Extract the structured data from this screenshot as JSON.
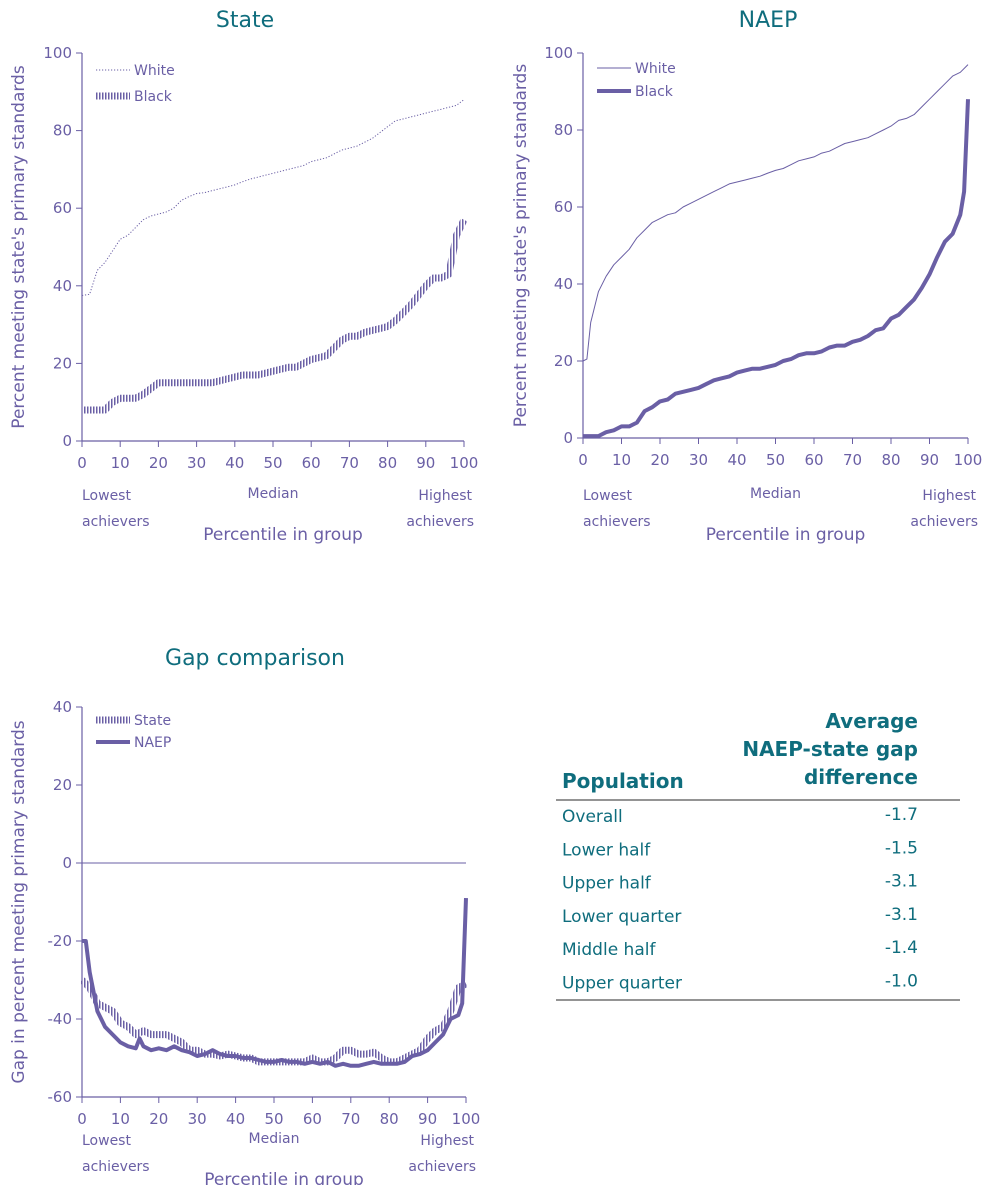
{
  "colors": {
    "accent": "#0f6d7d",
    "series": "#6a5fa5",
    "axis": "#6a5fa5"
  },
  "annotations": {
    "low": [
      "Lowest",
      "achievers"
    ],
    "mid": "Median",
    "high": [
      "Highest",
      "achievers"
    ]
  },
  "chart_data": [
    {
      "type": "line",
      "title": "State",
      "xlabel": "Percentile in group",
      "ylabel": "Percent meeting state's primary standards",
      "xlim": [
        0,
        100
      ],
      "ylim": [
        0,
        100
      ],
      "xticks": [
        0,
        10,
        20,
        30,
        40,
        50,
        60,
        70,
        80,
        90,
        100
      ],
      "yticks": [
        0,
        20,
        40,
        60,
        80,
        100
      ],
      "legend_position": "top-left",
      "series": [
        {
          "name": "White",
          "style": "dotted",
          "x": [
            0,
            2,
            4,
            6,
            8,
            10,
            12,
            14,
            16,
            18,
            20,
            22,
            24,
            26,
            28,
            30,
            32,
            34,
            36,
            38,
            40,
            42,
            44,
            46,
            48,
            50,
            52,
            54,
            56,
            58,
            60,
            62,
            64,
            66,
            68,
            70,
            72,
            74,
            76,
            78,
            80,
            82,
            84,
            86,
            88,
            90,
            92,
            94,
            96,
            98,
            100
          ],
          "y": [
            37.5,
            37.8,
            44,
            46,
            49,
            52,
            53,
            55,
            57,
            58,
            58.5,
            59,
            60,
            62,
            63,
            63.8,
            64,
            64.5,
            65,
            65.5,
            66,
            66.8,
            67.5,
            68,
            68.5,
            69,
            69.5,
            70,
            70.5,
            71,
            72,
            72.5,
            73,
            74,
            75,
            75.5,
            76,
            77,
            78,
            79.5,
            81,
            82.5,
            83,
            83.5,
            84,
            84.5,
            85,
            85.5,
            86,
            86.5,
            88
          ]
        },
        {
          "name": "Black",
          "style": "hatched",
          "x": [
            0,
            2,
            4,
            6,
            8,
            10,
            12,
            14,
            16,
            18,
            20,
            22,
            24,
            26,
            28,
            30,
            32,
            34,
            36,
            38,
            40,
            42,
            44,
            46,
            48,
            50,
            52,
            54,
            56,
            58,
            60,
            62,
            64,
            66,
            68,
            70,
            72,
            74,
            76,
            78,
            80,
            82,
            84,
            86,
            88,
            90,
            92,
            94,
            96,
            98,
            100
          ],
          "y": [
            8,
            8,
            8,
            8,
            10,
            11,
            11,
            11,
            12,
            13.5,
            15,
            15,
            15,
            15,
            15,
            15,
            15,
            15,
            15.5,
            16,
            16.5,
            17,
            17,
            17,
            17.5,
            18,
            18.5,
            19,
            19,
            20,
            21,
            21.5,
            22,
            24,
            26,
            27,
            27,
            28,
            28.5,
            29,
            29.5,
            31,
            33,
            35,
            37.5,
            40,
            42,
            42,
            43,
            53,
            57
          ]
        }
      ]
    },
    {
      "type": "line",
      "title": "NAEP",
      "xlabel": "Percentile in group",
      "ylabel": "Percent meeting state's primary standards",
      "xlim": [
        0,
        100
      ],
      "ylim": [
        0,
        100
      ],
      "xticks": [
        0,
        10,
        20,
        30,
        40,
        50,
        60,
        70,
        80,
        90,
        100
      ],
      "yticks": [
        0,
        20,
        40,
        60,
        80,
        100
      ],
      "legend_position": "top-left",
      "series": [
        {
          "name": "White",
          "style": "thin",
          "x": [
            0,
            1,
            2,
            4,
            6,
            8,
            10,
            12,
            14,
            16,
            18,
            20,
            22,
            24,
            26,
            28,
            30,
            32,
            34,
            36,
            38,
            40,
            42,
            44,
            46,
            48,
            50,
            52,
            54,
            56,
            58,
            60,
            62,
            64,
            66,
            68,
            70,
            72,
            74,
            76,
            78,
            80,
            82,
            84,
            86,
            88,
            90,
            92,
            94,
            96,
            98,
            100
          ],
          "y": [
            20,
            20.5,
            30,
            38,
            42,
            45,
            47,
            49,
            52,
            54,
            56,
            57,
            58,
            58.5,
            60,
            61,
            62,
            63,
            64,
            65,
            66,
            66.5,
            67,
            67.5,
            68,
            68.8,
            69.5,
            70,
            71,
            72,
            72.5,
            73,
            74,
            74.5,
            75.5,
            76.5,
            77,
            77.5,
            78,
            79,
            80,
            81,
            82.5,
            83,
            84,
            86,
            88,
            90,
            92,
            94,
            95,
            97
          ]
        },
        {
          "name": "Black",
          "style": "thick",
          "x": [
            0,
            2,
            4,
            6,
            8,
            10,
            12,
            14,
            16,
            18,
            20,
            22,
            24,
            26,
            28,
            30,
            32,
            34,
            36,
            38,
            40,
            42,
            44,
            46,
            48,
            50,
            52,
            54,
            56,
            58,
            60,
            62,
            64,
            66,
            68,
            70,
            72,
            74,
            76,
            78,
            80,
            82,
            84,
            86,
            88,
            90,
            92,
            94,
            96,
            98,
            99,
            100
          ],
          "y": [
            0.5,
            0.5,
            0.5,
            1.5,
            2,
            3,
            3,
            4,
            7,
            8,
            9.5,
            10,
            11.5,
            12,
            12.5,
            13,
            14,
            15,
            15.5,
            16,
            17,
            17.5,
            18,
            18,
            18.5,
            19,
            20,
            20.5,
            21.5,
            22,
            22,
            22.5,
            23.5,
            24,
            24,
            25,
            25.5,
            26.5,
            28,
            28.5,
            31,
            32,
            34,
            36,
            39,
            42.5,
            47,
            51,
            53,
            58,
            64,
            88
          ]
        }
      ]
    },
    {
      "type": "line",
      "title": "Gap comparison",
      "xlabel": "Percentile in group",
      "ylabel": "Gap in percent meeting primary standards",
      "xlim": [
        0,
        100
      ],
      "ylim": [
        -60,
        40
      ],
      "xticks": [
        0,
        10,
        20,
        30,
        40,
        50,
        60,
        70,
        80,
        90,
        100
      ],
      "yticks": [
        -60,
        -40,
        -20,
        0,
        20,
        40
      ],
      "legend_position": "top-left",
      "series": [
        {
          "name": "State",
          "style": "hatched",
          "x": [
            0,
            2,
            4,
            6,
            8,
            10,
            12,
            14,
            16,
            18,
            20,
            22,
            24,
            26,
            28,
            30,
            32,
            34,
            36,
            38,
            40,
            42,
            44,
            46,
            48,
            50,
            52,
            54,
            56,
            58,
            60,
            62,
            64,
            66,
            68,
            70,
            72,
            74,
            76,
            78,
            80,
            82,
            84,
            86,
            88,
            90,
            92,
            94,
            96,
            98,
            100
          ],
          "y": [
            -30,
            -32,
            -36,
            -37,
            -38,
            -41,
            -42,
            -44,
            -43,
            -44,
            -44,
            -44,
            -45,
            -46,
            -48,
            -48,
            -49,
            -49,
            -49.5,
            -49,
            -49.5,
            -50,
            -50,
            -51,
            -51,
            -51,
            -51,
            -51,
            -51,
            -51,
            -50,
            -51,
            -51,
            -50,
            -48,
            -48,
            -49,
            -49,
            -48.5,
            -50,
            -51,
            -51,
            -50,
            -49,
            -48,
            -45,
            -43,
            -42,
            -38,
            -32,
            -31
          ]
        },
        {
          "name": "NAEP",
          "style": "thick",
          "x": [
            0,
            1,
            2,
            4,
            6,
            8,
            10,
            12,
            14,
            15,
            16,
            18,
            20,
            22,
            24,
            26,
            28,
            30,
            32,
            34,
            36,
            38,
            40,
            42,
            44,
            46,
            48,
            50,
            52,
            54,
            56,
            58,
            60,
            62,
            64,
            66,
            68,
            70,
            72,
            74,
            76,
            78,
            80,
            82,
            84,
            86,
            88,
            90,
            92,
            94,
            96,
            98,
            99,
            100
          ],
          "y": [
            -20,
            -20,
            -28,
            -38,
            -42,
            -44,
            -46,
            -47,
            -47.5,
            -45,
            -47,
            -48,
            -47.5,
            -48,
            -47,
            -48,
            -48.5,
            -49.5,
            -49,
            -48,
            -49,
            -49.5,
            -49.5,
            -50,
            -50,
            -50.5,
            -51,
            -51,
            -50.5,
            -51,
            -51,
            -51.5,
            -51,
            -51.5,
            -51,
            -52,
            -51.5,
            -52,
            -52,
            -51.5,
            -51,
            -51.5,
            -51.5,
            -51.5,
            -51,
            -49.5,
            -49,
            -48,
            -46,
            -44,
            -40,
            -39,
            -36,
            -9
          ]
        }
      ]
    }
  ],
  "table": {
    "headers": {
      "population": "Population",
      "gap_lines": [
        "Average",
        "NAEP-state gap",
        "difference"
      ]
    },
    "rows": [
      {
        "population": "Overall",
        "value": "-1.7"
      },
      {
        "population": "Lower half",
        "value": "-1.5"
      },
      {
        "population": "Upper half",
        "value": "-3.1"
      },
      {
        "population": "Lower quarter",
        "value": "-3.1"
      },
      {
        "population": "Middle half",
        "value": "-1.4"
      },
      {
        "population": "Upper quarter",
        "value": "-1.0"
      }
    ]
  }
}
